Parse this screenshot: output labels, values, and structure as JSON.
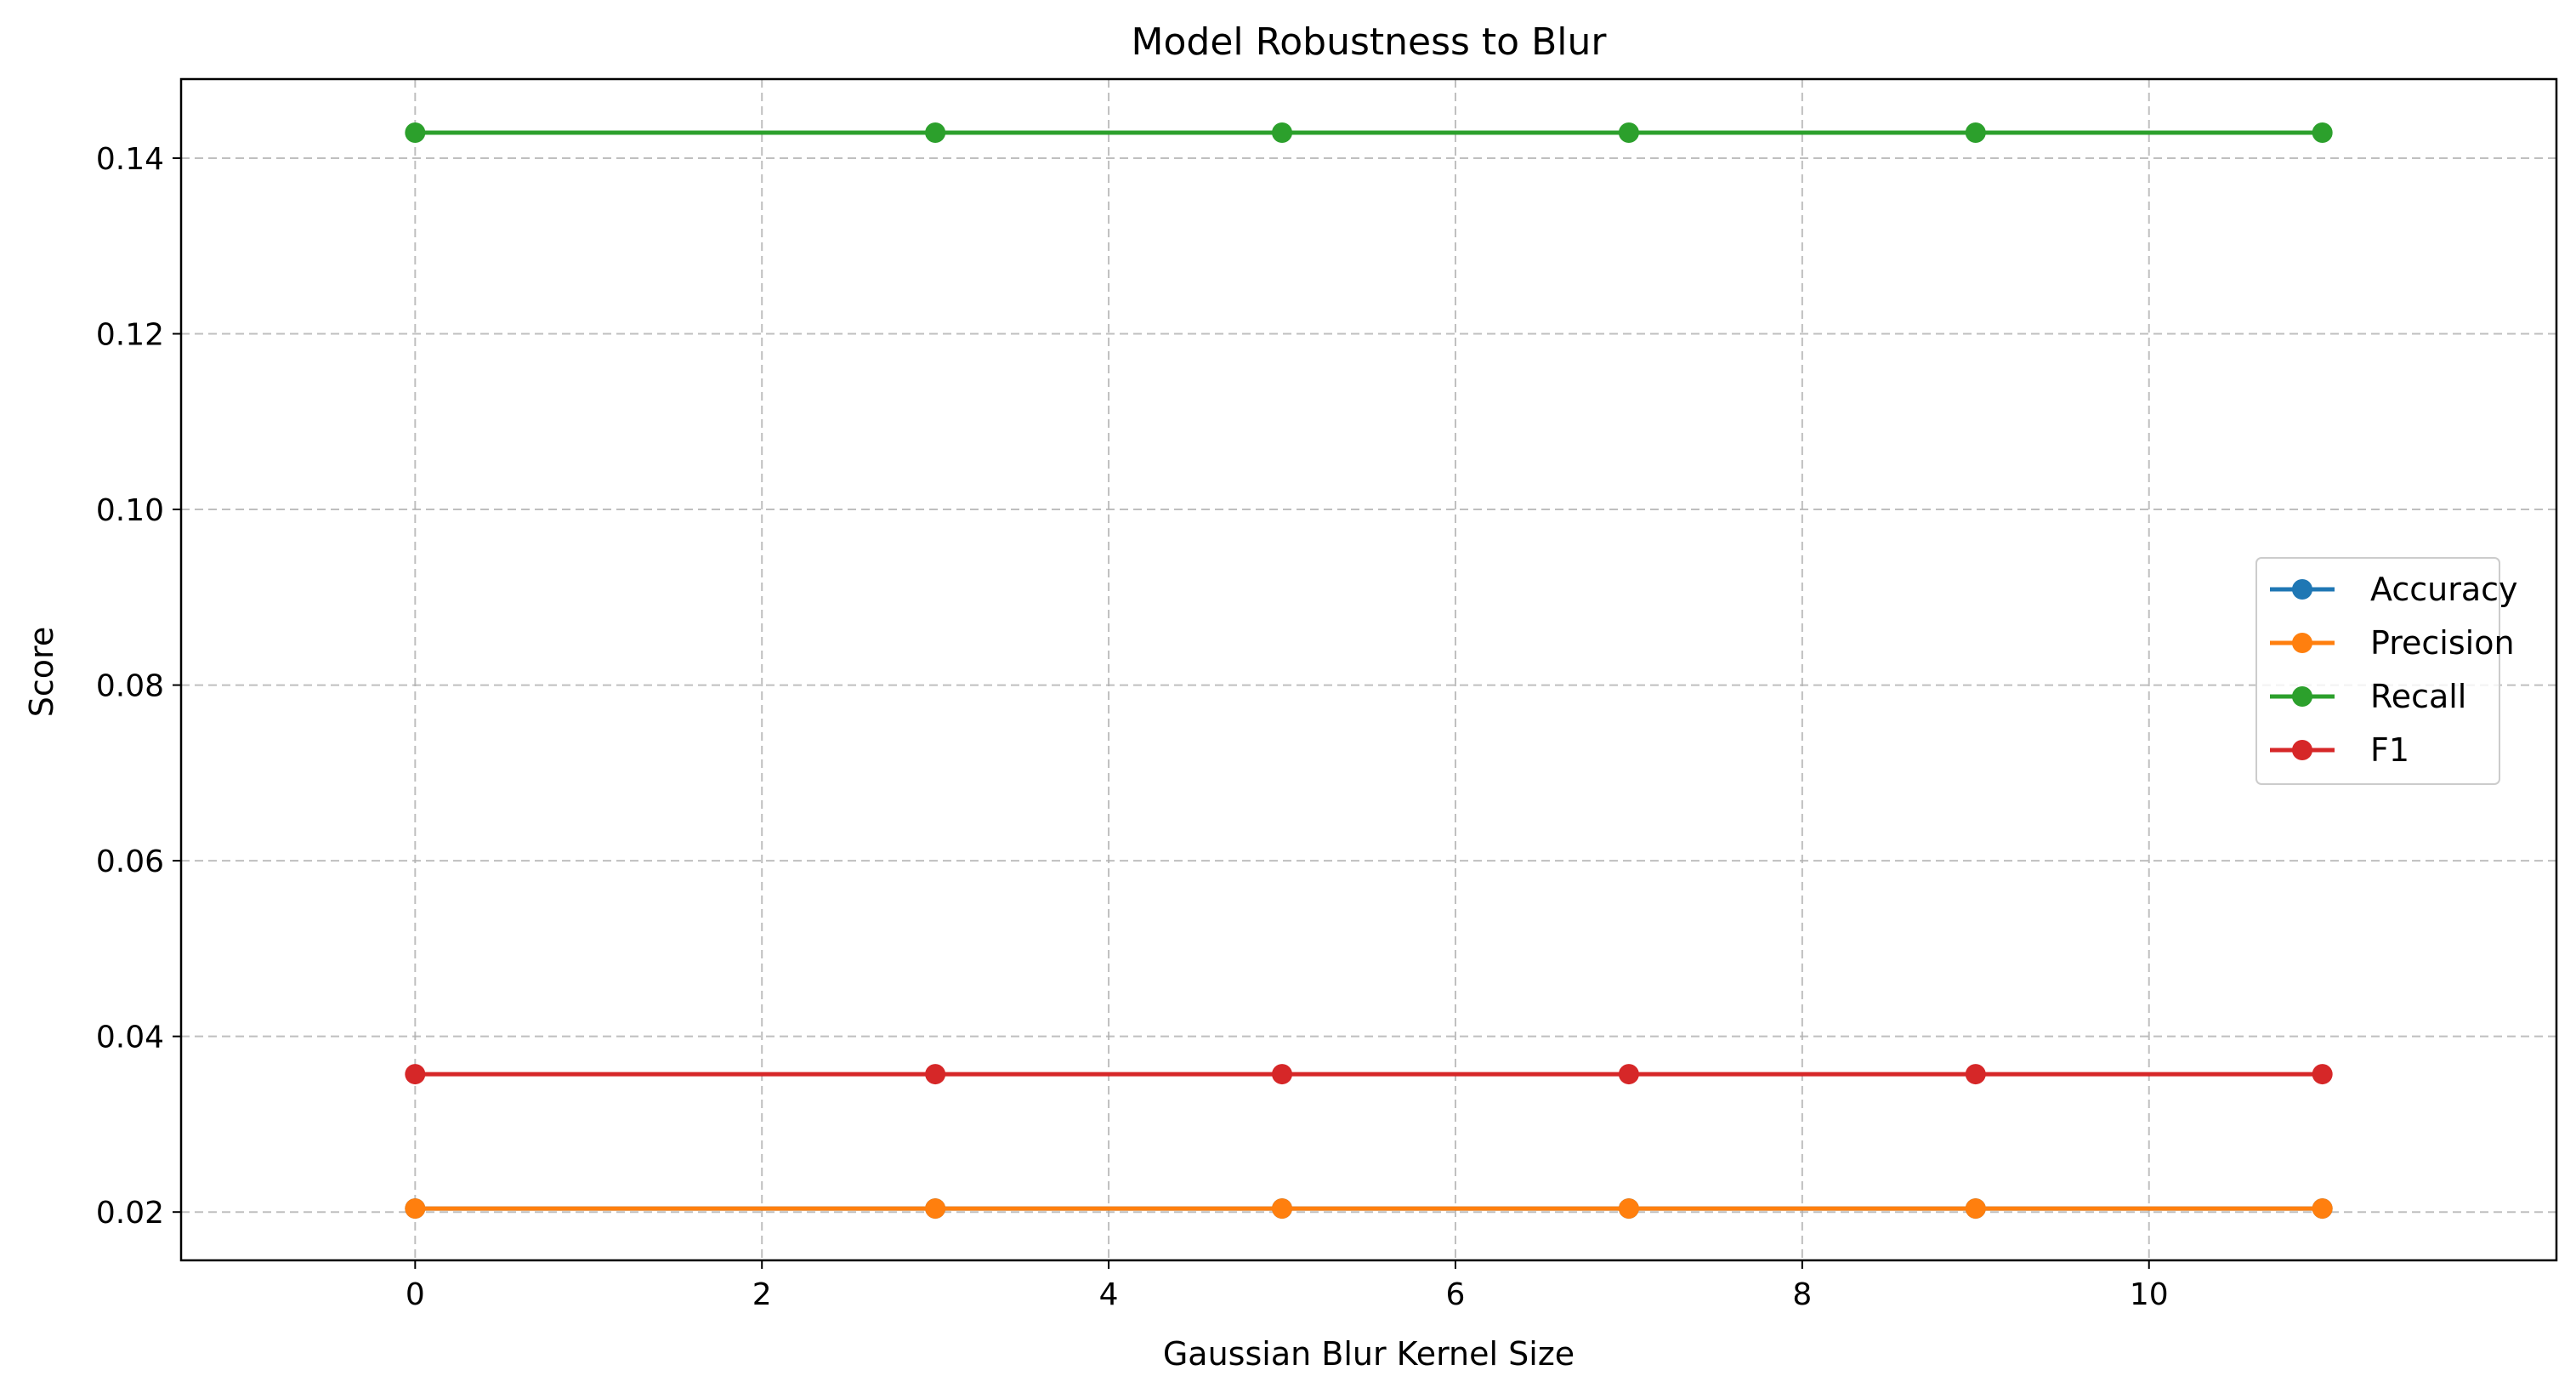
{
  "chart_data": {
    "type": "line",
    "title": "Model Robustness to Blur",
    "xlabel": "Gaussian Blur Kernel Size",
    "ylabel": "Score",
    "xlim": [
      -1.35,
      12.35
    ],
    "ylim": [
      0.0145,
      0.149
    ],
    "xticks": [
      0,
      2,
      4,
      6,
      8,
      10
    ],
    "yticks": [
      0.02,
      0.04,
      0.06,
      0.08,
      0.1,
      0.12,
      0.14
    ],
    "xtick_labels": [
      "0",
      "2",
      "4",
      "6",
      "8",
      "10"
    ],
    "ytick_labels": [
      "0.02",
      "0.04",
      "0.06",
      "0.08",
      "0.10",
      "0.12",
      "0.14"
    ],
    "grid": true,
    "legend_position": "center-right",
    "x": [
      0,
      3,
      5,
      7,
      9,
      11
    ],
    "series": [
      {
        "name": "Accuracy",
        "color": "#1f77b4",
        "values": [
          0.0204,
          0.0204,
          0.0204,
          0.0204,
          0.0204,
          0.0204
        ]
      },
      {
        "name": "Precision",
        "color": "#ff7f0e",
        "values": [
          0.0204,
          0.0204,
          0.0204,
          0.0204,
          0.0204,
          0.0204
        ]
      },
      {
        "name": "Recall",
        "color": "#2ca02c",
        "values": [
          0.1429,
          0.1429,
          0.1429,
          0.1429,
          0.1429,
          0.1429
        ]
      },
      {
        "name": "F1",
        "color": "#d62728",
        "values": [
          0.0357,
          0.0357,
          0.0357,
          0.0357,
          0.0357,
          0.0357
        ]
      }
    ]
  }
}
